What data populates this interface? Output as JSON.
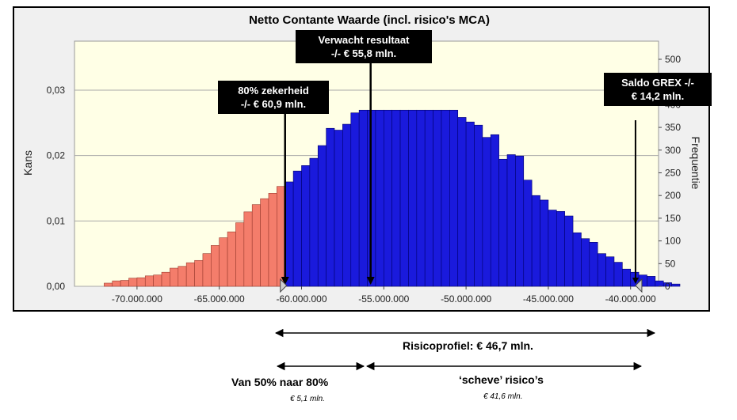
{
  "chart_data": {
    "type": "bar",
    "title": "Netto Contante Waarde (incl. risico's MCA)",
    "ylabel": "Kans",
    "y2label": "Frequentie",
    "x_ticks": [
      "-70.000.000",
      "-65.000.000",
      "-60.000.000",
      "-55.000.000",
      "-50.000.000",
      "-45.000.000",
      "-40.000.000"
    ],
    "x_tick_values": [
      -70000000,
      -65000000,
      -60000000,
      -55000000,
      -50000000,
      -45000000,
      -40000000
    ],
    "y_ticks": [
      "0,00",
      "0,01",
      "0,02",
      "0,03"
    ],
    "y_tick_values": [
      0,
      0.01,
      0.02,
      0.03
    ],
    "y2_ticks": [
      "0",
      "50",
      "100",
      "150",
      "200",
      "250",
      "300",
      "350",
      "400",
      "450",
      "500"
    ],
    "y2_tick_values": [
      0,
      50,
      100,
      150,
      200,
      250,
      300,
      350,
      400,
      450,
      500
    ],
    "xlim": [
      -73800000,
      -38300000
    ],
    "ylim": [
      0,
      0.0375
    ],
    "y2lim": [
      0,
      540
    ],
    "bin_width": 500000,
    "bin_start": -72000000,
    "frequencies": [
      7,
      12,
      13,
      18,
      19,
      23,
      25,
      31,
      40,
      44,
      52,
      57,
      72,
      90,
      107,
      120,
      140,
      164,
      180,
      193,
      205,
      220,
      230,
      254,
      266,
      282,
      310,
      348,
      344,
      357,
      382,
      388,
      388,
      388,
      388,
      388,
      388,
      388,
      388,
      388,
      388,
      388,
      388,
      372,
      362,
      355,
      328,
      334,
      280,
      290,
      287,
      234,
      200,
      190,
      168,
      165,
      155,
      118,
      105,
      97,
      72,
      65,
      53,
      38,
      31,
      25,
      22,
      12,
      8,
      5
    ],
    "series": [
      {
        "name": "",
        "color": "#f47d6b",
        "bins": "below -61.000.000"
      },
      {
        "name": "",
        "color": "#1a1adc",
        "bins": "from -61.000.000"
      }
    ],
    "markers": [
      -61000000,
      -55800000,
      -39700000
    ],
    "grid": true,
    "legend": "none"
  },
  "callouts": {
    "expected_line1": "Verwacht resultaat",
    "expected_line2": "-/- € 55,8 mln.",
    "certainty_line1": "80% zekerheid",
    "certainty_line2": "-/- € 60,9 mln.",
    "grex_line1": "Saldo GREX -/-",
    "grex_line2": "€ 14,2 mln."
  },
  "annotations": {
    "risk_profile": "Risicoprofiel: € 46,7 mln.",
    "span_50_80": "Van 50% naar 80%",
    "span_50_80_value": "€ 5,1 mln.",
    "skew_risks": "‘scheve’ risico’s",
    "skew_risks_value": "€ 41,6 mln."
  },
  "colors": {
    "plot_bg": "#ffffe6",
    "frame_bg": "#f0f0f0",
    "bar_low": "#f47d6b",
    "bar_high": "#1a1adc"
  }
}
